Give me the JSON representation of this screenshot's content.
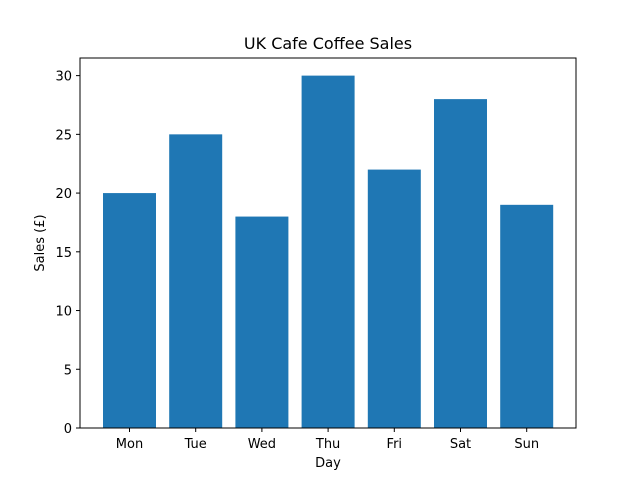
{
  "chart_data": {
    "type": "bar",
    "title": "UK Cafe Coffee Sales",
    "xlabel": "Day",
    "ylabel": "Sales (£)",
    "categories": [
      "Mon",
      "Tue",
      "Wed",
      "Thu",
      "Fri",
      "Sat",
      "Sun"
    ],
    "values": [
      20,
      25,
      18,
      30,
      22,
      28,
      19
    ],
    "ylim": [
      0,
      31.5
    ],
    "yticks": [
      0,
      5,
      10,
      15,
      20,
      25,
      30
    ],
    "bar_color": "#1f77b4",
    "grid": false,
    "legend": "none"
  }
}
